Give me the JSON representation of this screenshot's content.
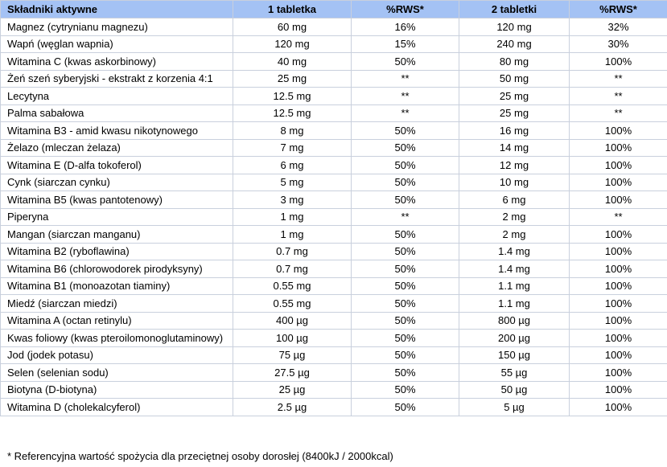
{
  "colors": {
    "header_bg": "#a4c2f4",
    "border": "#c9d0dd"
  },
  "table": {
    "headers": [
      "Składniki aktywne",
      "1 tabletka",
      "%RWS*",
      "2 tabletki",
      "%RWS*"
    ],
    "rows": [
      [
        "Magnez (cytrynianu magnezu)",
        "60 mg",
        "16%",
        "120 mg",
        "32%"
      ],
      [
        "Wapń (węglan wapnia)",
        "120 mg",
        "15%",
        "240 mg",
        "30%"
      ],
      [
        "Witamina C (kwas askorbinowy)",
        "40 mg",
        "50%",
        "80 mg",
        "100%"
      ],
      [
        "Żeń szeń syberyjski - ekstrakt z korzenia 4:1",
        "25 mg",
        "**",
        "50 mg",
        "**"
      ],
      [
        "Lecytyna",
        "12.5 mg",
        "**",
        "25 mg",
        "**"
      ],
      [
        "Palma sabałowa",
        "12.5 mg",
        "**",
        "25 mg",
        "**"
      ],
      [
        "Witamina B3 - amid kwasu nikotynowego",
        "8 mg",
        "50%",
        "16 mg",
        "100%"
      ],
      [
        "Żelazo (mleczan żelaza)",
        "7 mg",
        "50%",
        "14 mg",
        "100%"
      ],
      [
        "Witamina E (D-alfa tokoferol)",
        "6 mg",
        "50%",
        "12 mg",
        "100%"
      ],
      [
        "Cynk (siarczan cynku)",
        "5 mg",
        "50%",
        "10 mg",
        "100%"
      ],
      [
        "Witamina B5 (kwas pantotenowy)",
        "3 mg",
        "50%",
        "6 mg",
        "100%"
      ],
      [
        "Piperyna",
        "1 mg",
        "**",
        "2 mg",
        "**"
      ],
      [
        "Mangan (siarczan manganu)",
        "1 mg",
        "50%",
        "2 mg",
        "100%"
      ],
      [
        "Witamina B2 (ryboflawina)",
        "0.7 mg",
        "50%",
        "1.4 mg",
        "100%"
      ],
      [
        "Witamina B6 (chlorowodorek pirodyksyny)",
        "0.7 mg",
        "50%",
        "1.4 mg",
        "100%"
      ],
      [
        "Witamina B1 (monoazotan tiaminy)",
        "0.55 mg",
        "50%",
        "1.1 mg",
        "100%"
      ],
      [
        "Miedź (siarczan miedzi)",
        "0.55 mg",
        "50%",
        "1.1 mg",
        "100%"
      ],
      [
        "Witamina A (octan retinylu)",
        "400 µg",
        "50%",
        "800 µg",
        "100%"
      ],
      [
        "Kwas foliowy (kwas pteroilomonoglutaminowy)",
        "100 µg",
        "50%",
        "200 µg",
        "100%"
      ],
      [
        "Jod (jodek potasu)",
        "75 µg",
        "50%",
        "150 µg",
        "100%"
      ],
      [
        "Selen (selenian sodu)",
        "27.5 µg",
        "50%",
        "55 µg",
        "100%"
      ],
      [
        "Biotyna (D-biotyna)",
        "25 µg",
        "50%",
        "50 µg",
        "100%"
      ],
      [
        "Witamina D (cholekalcyferol)",
        "2.5 µg",
        "50%",
        "5 µg",
        "100%"
      ]
    ]
  },
  "footnote": "* Referencyjna wartość spożycia dla przeciętnej osoby dorosłej (8400kJ / 2000kcal)"
}
